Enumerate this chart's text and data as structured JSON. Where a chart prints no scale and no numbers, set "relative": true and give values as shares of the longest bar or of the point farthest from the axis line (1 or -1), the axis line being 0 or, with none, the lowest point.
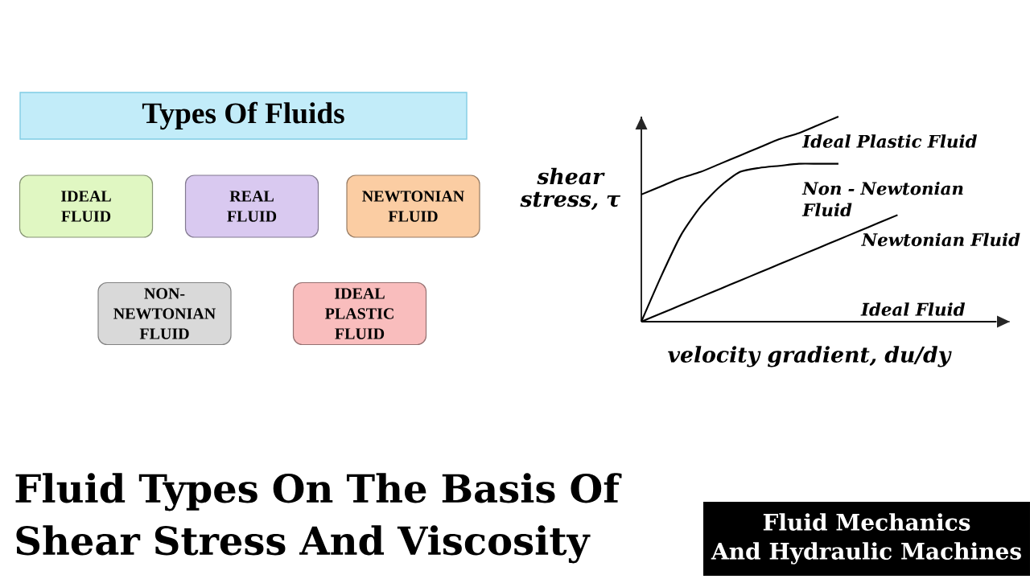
{
  "chart_data": [
    {
      "type": "other",
      "title": "Types Of Fluids",
      "categories": [
        "IDEAL FLUID",
        "REAL FLUID",
        "NEWTONIAN FLUID",
        "NON-NEWTONIAN FLUID",
        "IDEAL PLASTIC FLUID"
      ],
      "colors": [
        "#e0f7c2",
        "#d9c9f0",
        "#fbcda3",
        "#d9d9d9",
        "#f9bdbd"
      ]
    },
    {
      "type": "line",
      "relative": true,
      "xlabel": "velocity gradient, du/dy",
      "ylabel": "shear stress, τ",
      "categories": [
        null,
        null,
        null,
        null,
        null,
        null,
        null,
        null,
        null,
        null,
        null,
        null,
        null,
        null,
        null,
        null,
        null,
        null,
        null
      ],
      "series": [
        {
          "name": "Ideal Plastic Fluid",
          "color": "#000000",
          "values": [
            0.62,
            0.66,
            0.7,
            0.73,
            0.77,
            0.81,
            0.85,
            0.89,
            0.92,
            0.96,
            1.0,
            null,
            null,
            null,
            null,
            null,
            null,
            null,
            null
          ]
        },
        {
          "name": "Non - Newtonian Fluid",
          "color": "#000000",
          "values": [
            0,
            0.22,
            0.42,
            0.56,
            0.66,
            0.73,
            0.75,
            0.76,
            0.77,
            0.77,
            0.77,
            null,
            null,
            null,
            null,
            null,
            null,
            null,
            null
          ]
        },
        {
          "name": "Newtonian Fluid",
          "color": "#000000",
          "values": [
            0,
            0.04,
            0.08,
            0.12,
            0.16,
            0.2,
            0.24,
            0.28,
            0.32,
            0.36,
            0.4,
            0.44,
            0.48,
            0.52,
            null,
            null,
            null,
            null,
            null
          ]
        },
        {
          "name": "Ideal Fluid",
          "color": "#000000",
          "values": [
            0,
            0,
            0,
            0,
            0,
            0,
            0,
            0,
            0,
            0,
            0,
            0,
            0,
            0,
            0,
            0,
            0,
            0,
            0
          ]
        }
      ]
    },
    {
      "type": "other",
      "title": "Fluid Types On The Basis Of Shear Stress And Viscosity",
      "annotations": [
        "Fluid Mechanics And Hydraulic Machines"
      ]
    }
  ]
}
